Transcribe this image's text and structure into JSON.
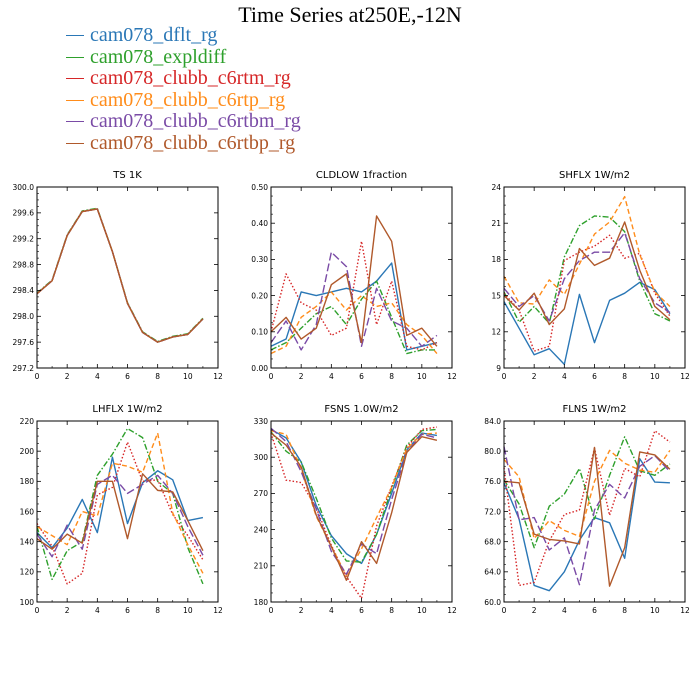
{
  "title": "Time Series at250E,-12N",
  "legend": [
    {
      "name": "cam078_dflt_rg",
      "color": "#2a77b6",
      "dash": "solid"
    },
    {
      "name": "cam078_expldiff",
      "color": "#2ea02c",
      "dash": "solid"
    },
    {
      "name": "cam078_clubb_c6rtm_rg",
      "color": "#d62728",
      "dash": "solid"
    },
    {
      "name": "cam078_clubb_c6rtp_rg",
      "color": "#ff8c1a",
      "dash": "solid"
    },
    {
      "name": "cam078_clubb_c6rtbm_rg",
      "color": "#7a4ba6",
      "dash": "solid"
    },
    {
      "name": "cam078_clubb_c6rtbp_rg",
      "color": "#b0592b",
      "dash": "solid"
    }
  ],
  "chart_data": [
    {
      "type": "line",
      "title": "TS   1K",
      "x": [
        0,
        1,
        2,
        3,
        4,
        5,
        6,
        7,
        8,
        9,
        10,
        11
      ],
      "xlim": [
        0,
        12
      ],
      "xticks": [
        "0",
        "2",
        "4",
        "6",
        "8",
        "10",
        "12"
      ],
      "ylim": [
        297.2,
        300.0
      ],
      "yticks": [
        "297.2",
        "297.6",
        "298.0",
        "298.4",
        "298.8",
        "299.2",
        "299.6",
        "300.0"
      ],
      "series": [
        {
          "values": [
            298.35,
            298.55,
            299.25,
            299.62,
            299.66,
            299.0,
            298.2,
            297.75,
            297.6,
            297.68,
            297.72,
            297.96
          ],
          "color": "#2a77b6",
          "dash": "solid"
        },
        {
          "values": [
            298.36,
            298.56,
            299.26,
            299.63,
            299.67,
            299.0,
            298.21,
            297.76,
            297.61,
            297.69,
            297.73,
            297.97
          ],
          "color": "#2ea02c",
          "dash": "dashdot"
        },
        {
          "values": [
            298.35,
            298.55,
            299.25,
            299.62,
            299.66,
            299.0,
            298.2,
            297.75,
            297.6,
            297.68,
            297.72,
            297.96
          ],
          "color": "#d62728",
          "dash": "dot"
        },
        {
          "values": [
            298.35,
            298.55,
            299.25,
            299.62,
            299.66,
            299.0,
            298.2,
            297.75,
            297.6,
            297.68,
            297.72,
            297.96
          ],
          "color": "#ff8c1a",
          "dash": "dash"
        },
        {
          "values": [
            298.35,
            298.55,
            299.25,
            299.62,
            299.66,
            299.0,
            298.2,
            297.75,
            297.6,
            297.68,
            297.72,
            297.96
          ],
          "color": "#7a4ba6",
          "dash": "longdash"
        },
        {
          "values": [
            298.35,
            298.55,
            299.25,
            299.62,
            299.66,
            299.0,
            298.2,
            297.75,
            297.6,
            297.68,
            297.72,
            297.96
          ],
          "color": "#b0592b",
          "dash": "solid"
        }
      ]
    },
    {
      "type": "line",
      "title": "CLDLOW   1fraction",
      "x": [
        0,
        1,
        2,
        3,
        4,
        5,
        6,
        7,
        8,
        9,
        10,
        11
      ],
      "xlim": [
        0,
        12
      ],
      "xticks": [
        "0",
        "2",
        "4",
        "6",
        "8",
        "10",
        "12"
      ],
      "ylim": [
        0.0,
        0.5
      ],
      "yticks": [
        "0.00",
        "0.10",
        "0.20",
        "0.30",
        "0.40",
        "0.50"
      ],
      "series": [
        {
          "values": [
            0.06,
            0.08,
            0.21,
            0.2,
            0.21,
            0.22,
            0.21,
            0.24,
            0.29,
            0.05,
            0.06,
            0.07
          ],
          "color": "#2a77b6",
          "dash": "solid"
        },
        {
          "values": [
            0.05,
            0.07,
            0.11,
            0.15,
            0.17,
            0.12,
            0.19,
            0.24,
            0.14,
            0.04,
            0.05,
            0.05
          ],
          "color": "#2ea02c",
          "dash": "dashdot"
        },
        {
          "values": [
            0.1,
            0.26,
            0.18,
            0.16,
            0.09,
            0.11,
            0.35,
            0.12,
            0.24,
            0.06,
            0.05,
            0.07
          ],
          "color": "#d62728",
          "dash": "dot"
        },
        {
          "values": [
            0.04,
            0.06,
            0.14,
            0.17,
            0.21,
            0.16,
            0.2,
            0.17,
            0.18,
            0.12,
            0.09,
            0.04
          ],
          "color": "#ff8c1a",
          "dash": "dash"
        },
        {
          "values": [
            0.07,
            0.13,
            0.05,
            0.12,
            0.32,
            0.28,
            0.06,
            0.22,
            0.13,
            0.11,
            0.06,
            0.09
          ],
          "color": "#7a4ba6",
          "dash": "longdash"
        },
        {
          "values": [
            0.1,
            0.14,
            0.08,
            0.11,
            0.23,
            0.26,
            0.07,
            0.42,
            0.35,
            0.09,
            0.11,
            0.06
          ],
          "color": "#b0592b",
          "dash": "solid"
        }
      ]
    },
    {
      "type": "line",
      "title": "SHFLX   1W/m2",
      "x": [
        0,
        1,
        2,
        3,
        4,
        5,
        6,
        7,
        8,
        9,
        10,
        11
      ],
      "xlim": [
        0,
        12
      ],
      "xticks": [
        "0",
        "2",
        "4",
        "6",
        "8",
        "10",
        "12"
      ],
      "ylim": [
        9,
        24
      ],
      "yticks": [
        "9",
        "12",
        "15",
        "18",
        "21",
        "24"
      ],
      "series": [
        {
          "values": [
            14.5,
            12.3,
            10.1,
            10.6,
            9.3,
            15.1,
            11.1,
            14.6,
            15.2,
            16.1,
            15.5,
            13.5
          ],
          "color": "#2a77b6",
          "dash": "solid"
        },
        {
          "values": [
            15.3,
            12.8,
            14.1,
            12.7,
            18.2,
            20.8,
            21.6,
            21.5,
            20.3,
            16.2,
            13.5,
            12.9
          ],
          "color": "#2ea02c",
          "dash": "dashdot"
        },
        {
          "values": [
            15.2,
            13.8,
            10.4,
            10.8,
            17.9,
            18.6,
            19.1,
            20.0,
            18.1,
            18.5,
            15.2,
            13.3
          ],
          "color": "#d62728",
          "dash": "dot"
        },
        {
          "values": [
            16.6,
            14.4,
            14.3,
            16.3,
            15.1,
            17.6,
            20.1,
            21.1,
            23.2,
            18.4,
            15.3,
            14.1
          ],
          "color": "#ff8c1a",
          "dash": "dash"
        },
        {
          "values": [
            15.6,
            14.1,
            15.0,
            12.9,
            16.4,
            17.9,
            18.6,
            18.6,
            20.2,
            16.4,
            14.4,
            13.6
          ],
          "color": "#7a4ba6",
          "dash": "longdash"
        },
        {
          "values": [
            15.0,
            13.8,
            15.2,
            12.6,
            13.9,
            18.9,
            17.5,
            18.1,
            21.1,
            17.1,
            14.1,
            13.0
          ],
          "color": "#b0592b",
          "dash": "solid"
        }
      ]
    },
    {
      "type": "line",
      "title": "LHFLX   1W/m2",
      "x": [
        0,
        1,
        2,
        3,
        4,
        5,
        6,
        7,
        8,
        9,
        10,
        11
      ],
      "xlim": [
        0,
        12
      ],
      "xticks": [
        "0",
        "2",
        "4",
        "6",
        "8",
        "10",
        "12"
      ],
      "ylim": [
        100,
        220
      ],
      "yticks": [
        "100",
        "120",
        "140",
        "160",
        "180",
        "200",
        "220"
      ],
      "series": [
        {
          "values": [
            146,
            136,
            149,
            168,
            146,
            196,
            152,
            179,
            187,
            181,
            154,
            156
          ],
          "color": "#2a77b6",
          "dash": "solid"
        },
        {
          "values": [
            150,
            115,
            134,
            140,
            184,
            198,
            215,
            209,
            180,
            172,
            136,
            112
          ],
          "color": "#2ea02c",
          "dash": "dashdot"
        },
        {
          "values": [
            152,
            137,
            112,
            119,
            171,
            176,
            206,
            180,
            181,
            158,
            144,
            128
          ],
          "color": "#d62728",
          "dash": "dot"
        },
        {
          "values": [
            150,
            144,
            138,
            160,
            157,
            192,
            190,
            186,
            212,
            159,
            138,
            119
          ],
          "color": "#ff8c1a",
          "dash": "dash"
        },
        {
          "values": [
            145,
            130,
            151,
            135,
            178,
            184,
            172,
            178,
            184,
            172,
            150,
            131
          ],
          "color": "#7a4ba6",
          "dash": "longdash"
        },
        {
          "values": [
            142,
            135,
            145,
            139,
            180,
            180,
            142,
            185,
            174,
            173,
            154,
            134
          ],
          "color": "#b0592b",
          "dash": "solid"
        }
      ]
    },
    {
      "type": "line",
      "title": "FSNS   1.0W/m2",
      "x": [
        0,
        1,
        2,
        3,
        4,
        5,
        6,
        7,
        8,
        9,
        10,
        11
      ],
      "xlim": [
        0,
        12
      ],
      "xticks": [
        "0",
        "2",
        "4",
        "6",
        "8",
        "10",
        "12"
      ],
      "ylim": [
        180,
        330
      ],
      "yticks": [
        "180",
        "210",
        "240",
        "270",
        "300",
        "330"
      ],
      "series": [
        {
          "values": [
            323,
            316,
            296,
            260,
            235,
            220,
            212,
            236,
            270,
            306,
            320,
            318
          ],
          "color": "#2a77b6",
          "dash": "solid"
        },
        {
          "values": [
            321,
            305,
            296,
            266,
            233,
            214,
            213,
            236,
            274,
            310,
            322,
            323
          ],
          "color": "#2ea02c",
          "dash": "dashdot"
        },
        {
          "values": [
            320,
            281,
            279,
            258,
            227,
            201,
            183,
            243,
            276,
            308,
            323,
            325
          ],
          "color": "#d62728",
          "dash": "dot"
        },
        {
          "values": [
            322,
            319,
            290,
            251,
            226,
            202,
            224,
            250,
            275,
            307,
            319,
            320
          ],
          "color": "#ff8c1a",
          "dash": "dash"
        },
        {
          "values": [
            324,
            313,
            288,
            257,
            222,
            203,
            228,
            220,
            265,
            304,
            319,
            316
          ],
          "color": "#7a4ba6",
          "dash": "longdash"
        },
        {
          "values": [
            320,
            310,
            292,
            252,
            226,
            198,
            230,
            212,
            254,
            304,
            317,
            314
          ],
          "color": "#b0592b",
          "dash": "solid"
        }
      ]
    },
    {
      "type": "line",
      "title": "FLNS   1W/m2",
      "x": [
        0,
        1,
        2,
        3,
        4,
        5,
        6,
        7,
        8,
        9,
        10,
        11
      ],
      "xlim": [
        0,
        12
      ],
      "xticks": [
        "0",
        "2",
        "4",
        "6",
        "8",
        "10",
        "12"
      ],
      "ylim": [
        60.0,
        84.0
      ],
      "yticks": [
        "60.0",
        "64.0",
        "68.0",
        "72.0",
        "76.0",
        "80.0",
        "84.0"
      ],
      "series": [
        {
          "values": [
            75.8,
            71.0,
            62.2,
            61.5,
            64.0,
            68.2,
            71.2,
            70.5,
            65.8,
            79.0,
            75.9,
            75.8
          ],
          "color": "#2a77b6",
          "dash": "solid"
        },
        {
          "values": [
            76.2,
            73.0,
            67.2,
            72.7,
            74.3,
            77.7,
            71.0,
            76.8,
            81.9,
            77.4,
            76.8,
            78.3
          ],
          "color": "#2ea02c",
          "dash": "dashdot"
        },
        {
          "values": [
            77.8,
            62.2,
            62.6,
            68.1,
            71.6,
            72.2,
            80.4,
            71.5,
            77.7,
            76.6,
            82.7,
            81.2
          ],
          "color": "#d62728",
          "dash": "dot"
        },
        {
          "values": [
            78.9,
            76.6,
            68.4,
            70.8,
            69.5,
            68.7,
            76.0,
            80.1,
            78.4,
            77.5,
            77.2,
            80.1
          ],
          "color": "#ff8c1a",
          "dash": "dash"
        },
        {
          "values": [
            80.6,
            70.9,
            71.2,
            66.9,
            68.5,
            62.3,
            72.2,
            75.6,
            73.8,
            78.0,
            79.4,
            77.3
          ],
          "color": "#7a4ba6",
          "dash": "longdash"
        },
        {
          "values": [
            76.0,
            75.8,
            69.0,
            68.3,
            68.1,
            67.7,
            80.5,
            62.1,
            67.2,
            79.9,
            79.5,
            77.6
          ],
          "color": "#b0592b",
          "dash": "solid"
        }
      ]
    }
  ]
}
